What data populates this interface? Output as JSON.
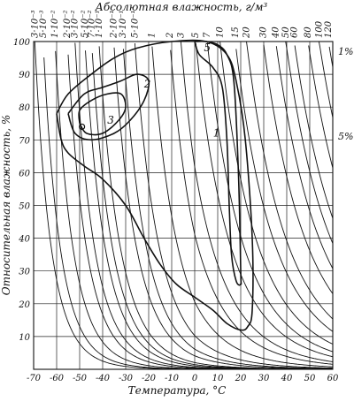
{
  "chart_data": {
    "type": "diagram",
    "title": "",
    "xlabel": "Температура, °С",
    "ylabel": "Относительная влажность, %",
    "top_label": "Абсолютная влажность, г/м³",
    "xlim": [
      -70,
      60
    ],
    "ylim": [
      0,
      100
    ],
    "x_ticks": [
      "-70",
      "-60",
      "-50",
      "-40",
      "-30",
      "-20",
      "-10",
      "0",
      "10",
      "20",
      "30",
      "40",
      "50",
      "60"
    ],
    "y_ticks": [
      "10",
      "20",
      "30",
      "40",
      "50",
      "60",
      "70",
      "80",
      "90",
      "100"
    ],
    "abs_humidity_labels": [
      "3·10⁻³",
      "5·10⁻³",
      "1·10⁻²",
      "2·10⁻²",
      "3·10⁻²",
      "5·10⁻²",
      "7·10⁻²",
      "1·10⁻¹",
      "2·10⁻¹",
      "3·10⁻¹",
      "5·10⁻¹",
      "1",
      "2",
      "3",
      "5",
      "7",
      "10",
      "15",
      "20",
      "30",
      "40",
      "50",
      "60",
      "80",
      "100",
      "120"
    ],
    "abs_humidity_values": [
      0.003,
      0.005,
      0.01,
      0.02,
      0.03,
      0.05,
      0.07,
      0.1,
      0.2,
      0.3,
      0.5,
      1,
      2,
      3,
      5,
      7,
      10,
      15,
      20,
      30,
      40,
      50,
      60,
      80,
      100,
      120
    ],
    "right_labels": [
      "1%",
      "5%"
    ],
    "contour_labels": [
      "1",
      "2",
      "3",
      "5"
    ],
    "contours": [
      {
        "label": "1",
        "points": [
          [
            -60,
            78
          ],
          [
            -58,
            70
          ],
          [
            -55,
            66
          ],
          [
            -48,
            62
          ],
          [
            -40,
            58
          ],
          [
            -30,
            50
          ],
          [
            -22,
            40
          ],
          [
            -15,
            32
          ],
          [
            -8,
            26
          ],
          [
            0,
            22
          ],
          [
            8,
            18
          ],
          [
            14,
            14
          ],
          [
            20,
            12
          ],
          [
            23,
            13
          ],
          [
            25,
            18
          ],
          [
            25,
            40
          ],
          [
            22,
            70
          ],
          [
            18,
            88
          ],
          [
            14,
            96
          ],
          [
            5,
            100
          ],
          [
            -10,
            100
          ],
          [
            -25,
            98
          ],
          [
            -35,
            95
          ],
          [
            -45,
            90
          ],
          [
            -55,
            84
          ],
          [
            -60,
            78
          ]
        ]
      },
      {
        "label": "2",
        "points": [
          [
            -55,
            78
          ],
          [
            -52,
            72
          ],
          [
            -45,
            70
          ],
          [
            -35,
            72
          ],
          [
            -28,
            76
          ],
          [
            -22,
            82
          ],
          [
            -20,
            88
          ],
          [
            -25,
            90
          ],
          [
            -32,
            88
          ],
          [
            -40,
            86
          ],
          [
            -48,
            84
          ],
          [
            -55,
            78
          ]
        ]
      },
      {
        "label": "3",
        "points": [
          [
            -50,
            75
          ],
          [
            -47,
            72
          ],
          [
            -40,
            72
          ],
          [
            -33,
            76
          ],
          [
            -30,
            80
          ],
          [
            -32,
            84
          ],
          [
            -38,
            84
          ],
          [
            -45,
            82
          ],
          [
            -50,
            79
          ],
          [
            -50,
            75
          ]
        ]
      },
      {
        "label": "5",
        "points": [
          [
            0,
            100
          ],
          [
            2,
            96
          ],
          [
            8,
            92
          ],
          [
            12,
            86
          ],
          [
            14,
            70
          ],
          [
            15,
            50
          ],
          [
            16,
            35
          ],
          [
            18,
            27
          ],
          [
            20,
            26
          ],
          [
            20,
            30
          ],
          [
            19,
            60
          ],
          [
            17,
            88
          ],
          [
            14,
            96
          ],
          [
            10,
            99
          ],
          [
            5,
            100
          ],
          [
            0,
            100
          ]
        ]
      }
    ]
  }
}
